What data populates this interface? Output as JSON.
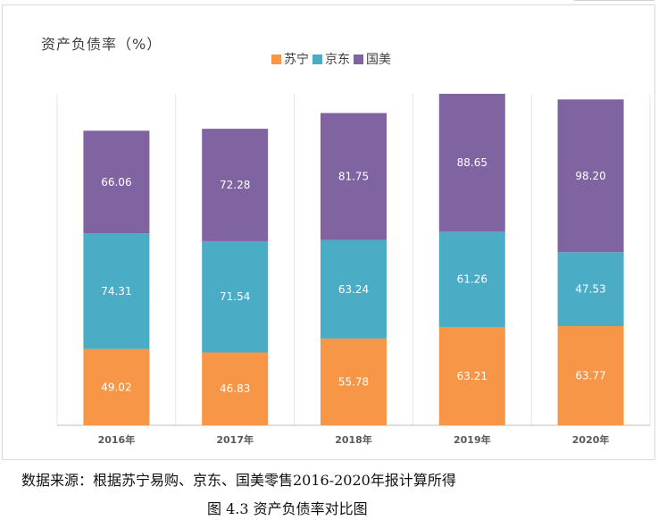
{
  "chart_data": {
    "type": "bar",
    "stacked": true,
    "title": "资产负债率（%）",
    "categories": [
      "2016年",
      "2017年",
      "2018年",
      "2019年",
      "2020年"
    ],
    "series": [
      {
        "name": "苏宁",
        "color": "#f79646",
        "values": [
          49.02,
          46.83,
          55.78,
          63.21,
          63.77
        ]
      },
      {
        "name": "京东",
        "color": "#4bacc6",
        "values": [
          74.31,
          71.54,
          63.24,
          61.26,
          47.53
        ]
      },
      {
        "name": "国美",
        "color": "#8064a2",
        "values": [
          66.06,
          72.28,
          81.75,
          88.65,
          98.2
        ]
      }
    ],
    "legend_position": "top-right",
    "grid": false
  },
  "source_note": "数据来源：根据苏宁易购、京东、国美零售2016-2020年报计算所得",
  "figure_caption": "图 4.3 资产负债率对比图"
}
